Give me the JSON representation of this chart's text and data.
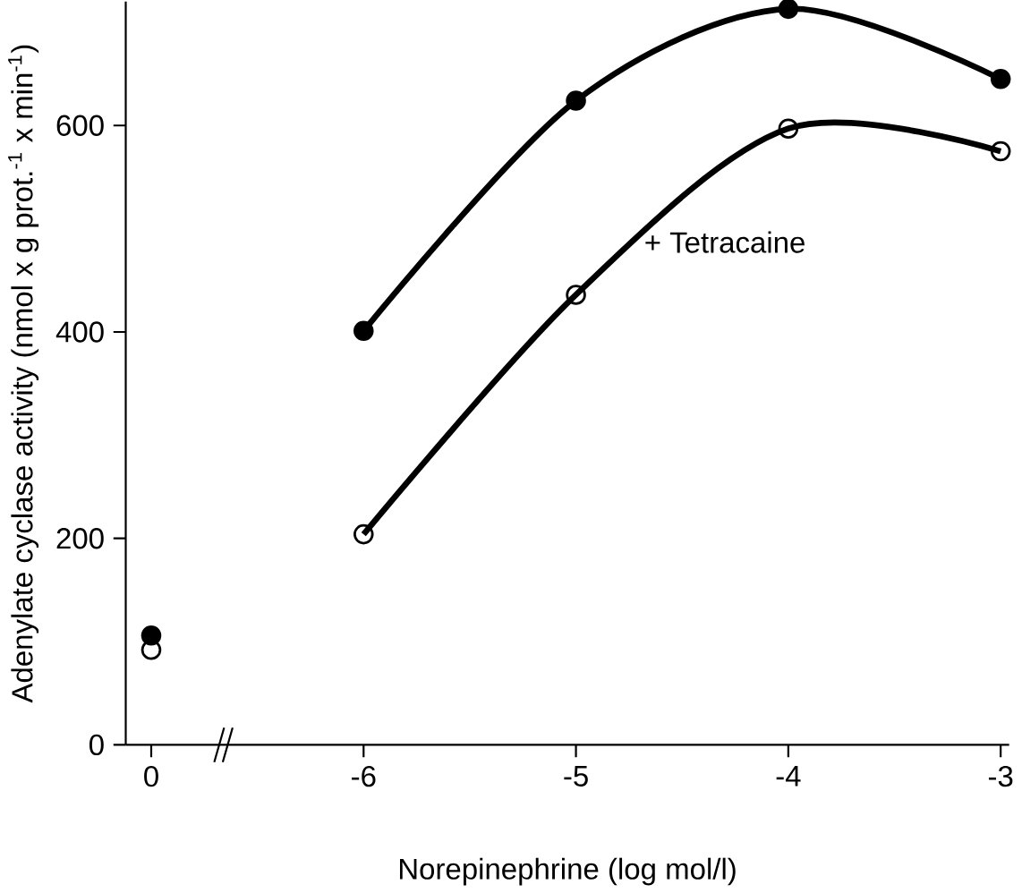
{
  "chart_data": {
    "type": "line",
    "xlabel": "Norepinephrine (log mol/l)",
    "ylabel": "Adenylate cyclase activity (nmol x g prot.$^{-1}$ x min$^{-1}$)",
    "categories": [
      "0",
      "-6",
      "-5",
      "-4",
      "-3"
    ],
    "ylim": [
      0,
      720
    ],
    "yticks": [
      0,
      200,
      400,
      600
    ],
    "annotations": [
      "+ Tetracaine"
    ],
    "series": [
      {
        "type": "scatter",
        "marker": "circle",
        "color": "#000000",
        "values": [
          106,
          null,
          null,
          null,
          null
        ]
      },
      {
        "type": "scatter",
        "marker": "open circle",
        "color": "#000000",
        "values": [
          92,
          null,
          null,
          null,
          null
        ]
      },
      {
        "marker": "circle",
        "color": "#000000",
        "values": [
          null,
          401,
          624,
          713,
          645
        ]
      },
      {
        "marker": "open circle",
        "color": "#000000",
        "values": [
          null,
          204,
          436,
          597,
          575
        ]
      }
    ]
  }
}
